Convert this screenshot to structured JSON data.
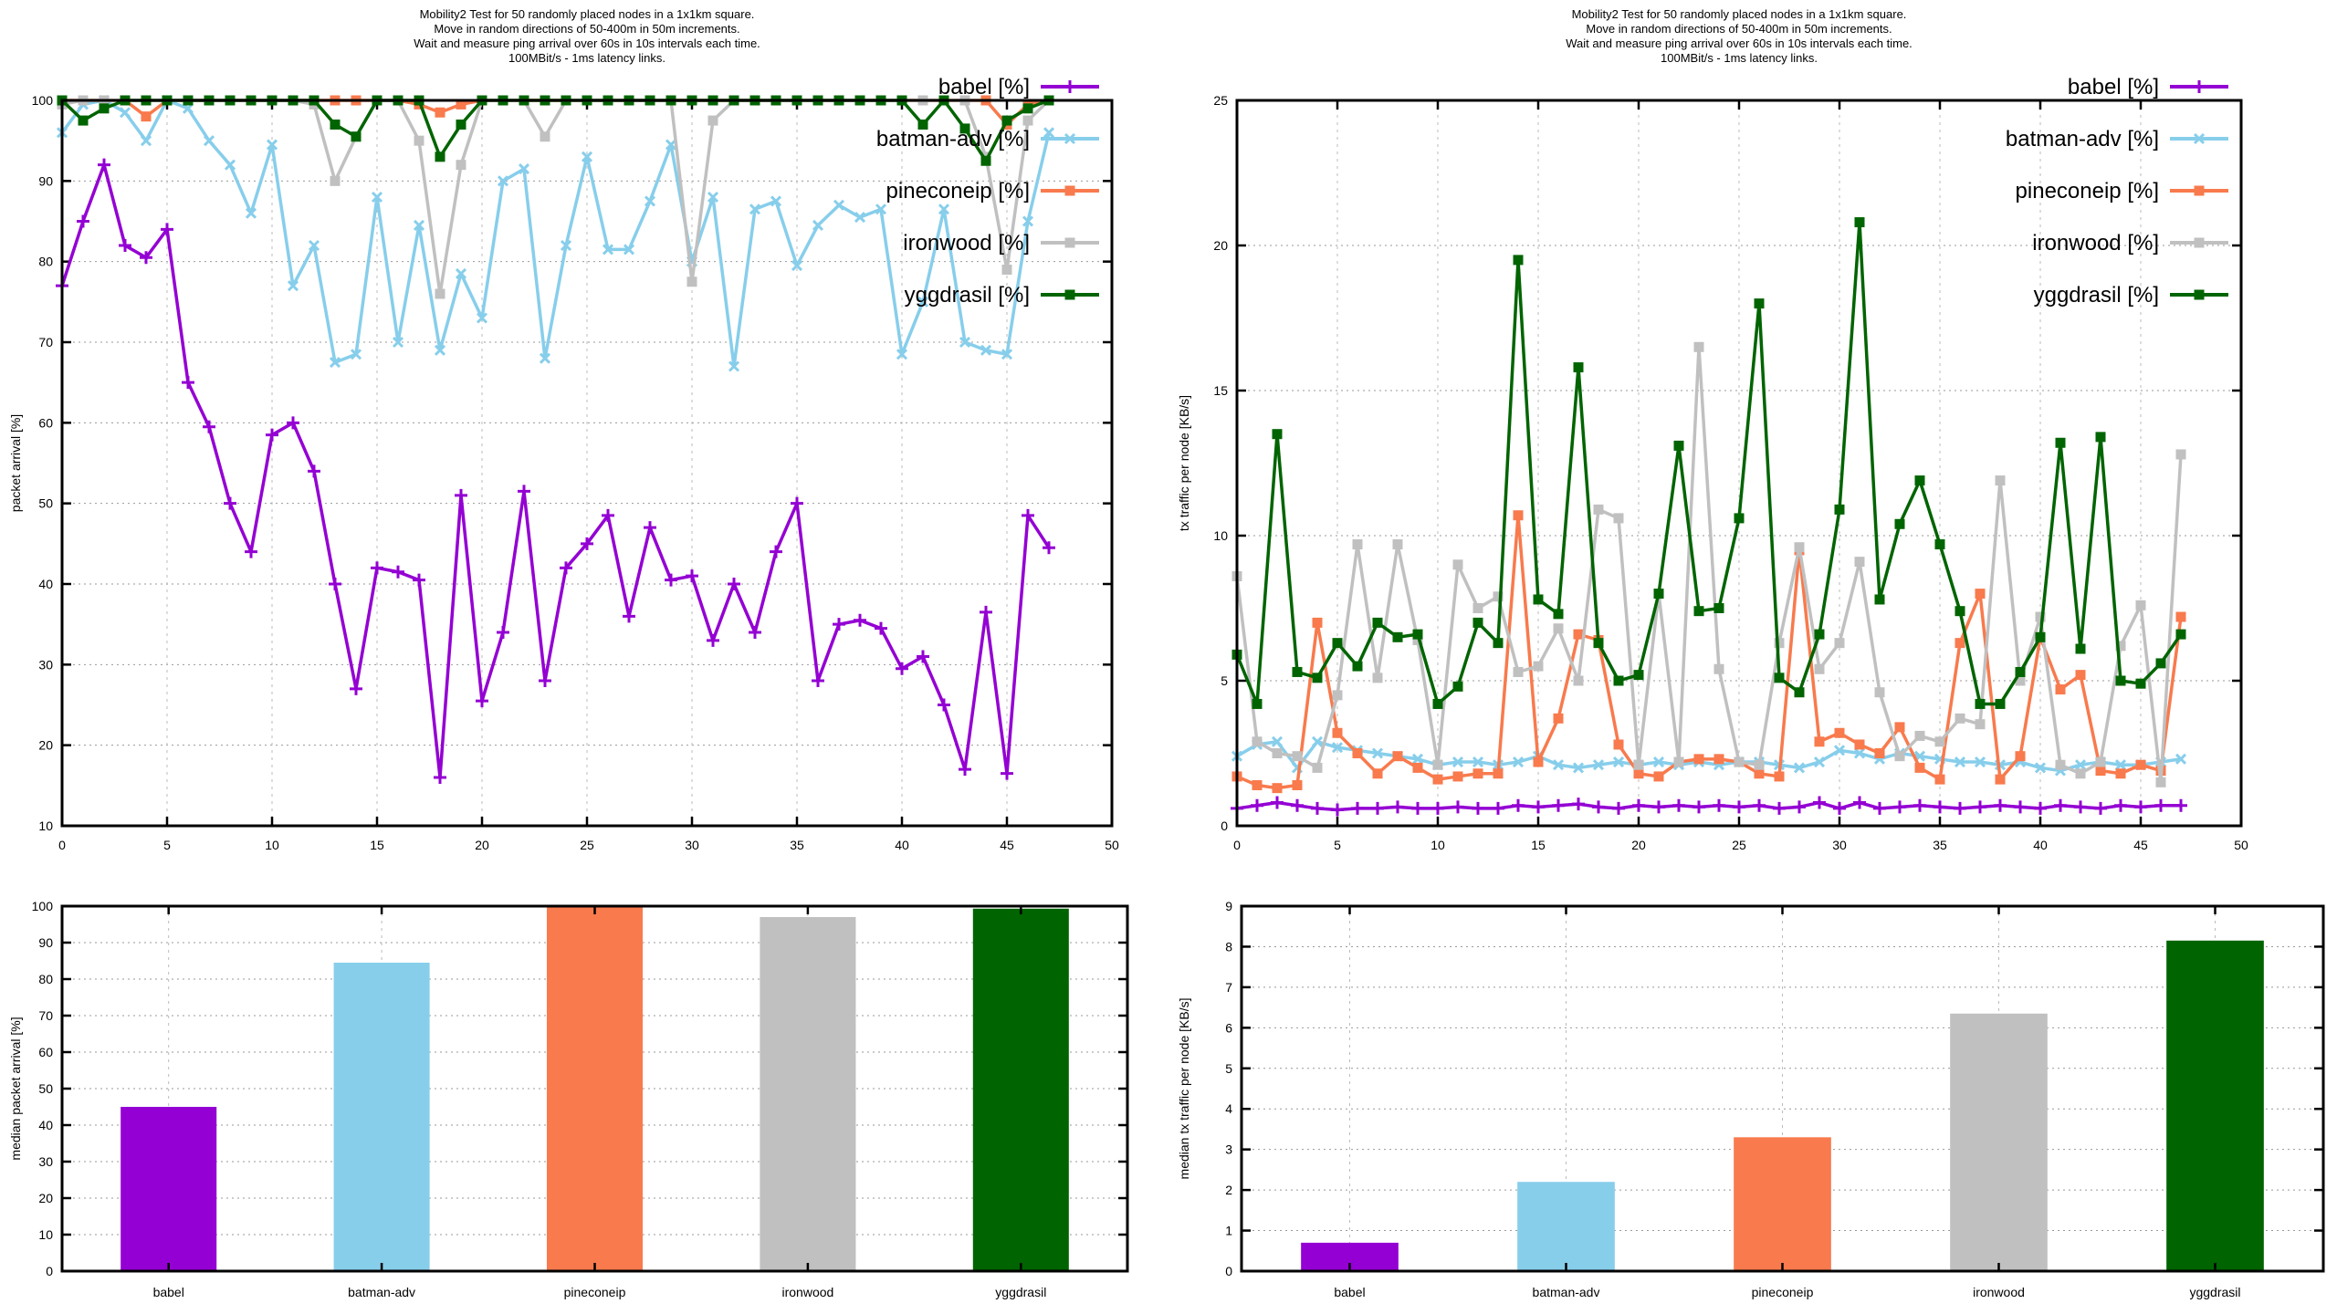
{
  "page": {
    "background": "#ffffff",
    "description_title": "Mobility2 mesh routing protocol comparison plots"
  },
  "palette": {
    "babel": "#9400d3",
    "batman_adv": "#87ceeb",
    "pineconeip": "#f87a4d",
    "ironwood": "#c0c0c0",
    "yggdrasil": "#006400",
    "frame": "#000000",
    "grid_h": "#999999",
    "grid_v": "#bbbbbb"
  },
  "chart_data": [
    {
      "id": "packet-arrival-line",
      "type": "line",
      "title_lines": [
        "Mobility2 Test for 50 randomly placed nodes in a 1x1km square.",
        "Move in random directions of 50-400m in 50m increments.",
        "Wait and measure ping arrival over 60s in 10s intervals each time.",
        "100MBit/s - 1ms latency links."
      ],
      "xlabel": "",
      "ylabel": "packet arrival [%]",
      "xlim": [
        0,
        50
      ],
      "ylim": [
        10,
        100
      ],
      "xtick_step": 5,
      "ytick_step": 10,
      "grid": true,
      "legend_position": "top-right-inside",
      "series": [
        {
          "name": "babel [%]",
          "color": "#9400d3",
          "marker": "plus",
          "values": [
            77,
            85,
            92,
            82,
            80.5,
            84,
            65,
            59.5,
            50,
            44,
            58.5,
            60,
            54,
            40,
            27,
            42,
            41.5,
            40.5,
            16,
            51,
            25.5,
            34,
            51.5,
            28,
            42,
            45,
            48.5,
            36,
            47,
            40.5,
            41,
            33,
            40,
            34,
            44,
            50,
            28,
            35,
            35.5,
            34.5,
            29.5,
            31,
            25,
            17,
            36.5,
            16.5,
            48.5,
            44.5
          ]
        },
        {
          "name": "batman-adv [%]",
          "color": "#87ceeb",
          "marker": "cross",
          "values": [
            96,
            99.5,
            100,
            98.5,
            95,
            100,
            99,
            95,
            92,
            86,
            94.5,
            77,
            82,
            67.5,
            68.5,
            88,
            70,
            84.5,
            69,
            78.5,
            73,
            90,
            91.5,
            68,
            82,
            93,
            81.5,
            81.5,
            87.5,
            94.5,
            80,
            88,
            67,
            86.5,
            87.5,
            79.5,
            84.5,
            87,
            85.5,
            86.5,
            68.5,
            75,
            86.5,
            70,
            69,
            68.5,
            85,
            96
          ]
        },
        {
          "name": "pineconeip [%]",
          "color": "#f87a4d",
          "marker": "square",
          "values": [
            100,
            100,
            100,
            100,
            98,
            100,
            100,
            100,
            100,
            100,
            100,
            100,
            100,
            100,
            100,
            100,
            100,
            99.5,
            98.5,
            99.5,
            100,
            100,
            100,
            100,
            100,
            100,
            100,
            100,
            100,
            100,
            100,
            100,
            100,
            100,
            100,
            100,
            100,
            100,
            100,
            100,
            100,
            100,
            100,
            100,
            100,
            97,
            99.5,
            100
          ]
        },
        {
          "name": "ironwood [%]",
          "color": "#c0c0c0",
          "marker": "square",
          "values": [
            99.5,
            100,
            100,
            100,
            100,
            100,
            100,
            100,
            100,
            100,
            100,
            100,
            99.5,
            90,
            95.5,
            100,
            100,
            95,
            76,
            92,
            100,
            100,
            100,
            95.5,
            100,
            100,
            100,
            100,
            100,
            100,
            77.5,
            97.5,
            100,
            100,
            100,
            100,
            100,
            100,
            100,
            100,
            100,
            100,
            100,
            100,
            93,
            79,
            97.5,
            100
          ]
        },
        {
          "name": "yggdrasil [%]",
          "color": "#006400",
          "marker": "square",
          "values": [
            100,
            97.5,
            99,
            100,
            100,
            100,
            100,
            100,
            100,
            100,
            100,
            100,
            100,
            97,
            95.5,
            100,
            100,
            100,
            93,
            97,
            100,
            100,
            100,
            100,
            100,
            100,
            100,
            100,
            100,
            100,
            100,
            100,
            100,
            100,
            100,
            100,
            100,
            100,
            100,
            100,
            100,
            97,
            100,
            96.5,
            92.5,
            97.5,
            99,
            100
          ]
        }
      ]
    },
    {
      "id": "tx-traffic-line",
      "type": "line",
      "title_lines": [
        "Mobility2 Test for 50 randomly placed nodes in a 1x1km square.",
        "Move in random directions of 50-400m in 50m increments.",
        "Wait and measure ping arrival over 60s in 10s intervals each time.",
        "100MBit/s - 1ms latency links."
      ],
      "xlabel": "",
      "ylabel": "tx traffic per node [KB/s]",
      "xlim": [
        0,
        50
      ],
      "ylim": [
        0,
        25
      ],
      "xtick_step": 5,
      "ytick_step": 5,
      "grid": true,
      "legend_position": "top-right-inside",
      "series": [
        {
          "name": "babel [%]",
          "color": "#9400d3",
          "marker": "plus",
          "values": [
            0.6,
            0.7,
            0.8,
            0.7,
            0.6,
            0.55,
            0.6,
            0.6,
            0.65,
            0.6,
            0.6,
            0.65,
            0.6,
            0.6,
            0.7,
            0.65,
            0.7,
            0.75,
            0.65,
            0.6,
            0.7,
            0.65,
            0.7,
            0.65,
            0.7,
            0.65,
            0.7,
            0.6,
            0.65,
            0.8,
            0.6,
            0.8,
            0.6,
            0.65,
            0.7,
            0.65,
            0.6,
            0.65,
            0.7,
            0.65,
            0.6,
            0.7,
            0.65,
            0.6,
            0.7,
            0.65,
            0.7,
            0.7
          ]
        },
        {
          "name": "batman-adv [%]",
          "color": "#87ceeb",
          "marker": "cross",
          "values": [
            2.4,
            2.8,
            2.9,
            2.0,
            2.9,
            2.7,
            2.6,
            2.5,
            2.4,
            2.3,
            2.1,
            2.2,
            2.2,
            2.1,
            2.2,
            2.4,
            2.1,
            2.0,
            2.1,
            2.2,
            2.1,
            2.2,
            2.1,
            2.2,
            2.1,
            2.2,
            2.2,
            2.1,
            2.0,
            2.2,
            2.6,
            2.5,
            2.3,
            2.5,
            2.4,
            2.3,
            2.2,
            2.2,
            2.1,
            2.2,
            2.0,
            1.9,
            2.1,
            2.2,
            2.1,
            2.1,
            2.2,
            2.3
          ]
        },
        {
          "name": "pineconeip [%]",
          "color": "#f87a4d",
          "marker": "square",
          "values": [
            1.7,
            1.4,
            1.3,
            1.4,
            7.0,
            3.2,
            2.5,
            1.8,
            2.4,
            2.0,
            1.6,
            1.7,
            1.8,
            1.8,
            10.7,
            2.2,
            3.7,
            6.6,
            6.4,
            2.8,
            1.8,
            1.7,
            2.2,
            2.3,
            2.3,
            2.2,
            1.8,
            1.7,
            9.5,
            2.9,
            3.2,
            2.8,
            2.5,
            3.4,
            2.0,
            1.6,
            6.3,
            8.0,
            1.6,
            2.4,
            6.5,
            4.7,
            5.2,
            1.9,
            1.8,
            2.1,
            1.9,
            7.2
          ]
        },
        {
          "name": "ironwood [%]",
          "color": "#c0c0c0",
          "marker": "square",
          "values": [
            8.6,
            2.9,
            2.5,
            2.4,
            2.0,
            4.5,
            9.7,
            5.1,
            9.7,
            6.4,
            2.1,
            9.0,
            7.5,
            7.9,
            5.3,
            5.5,
            6.8,
            5.0,
            10.9,
            10.6,
            2.1,
            8.0,
            2.2,
            16.5,
            5.4,
            2.2,
            2.1,
            6.3,
            9.6,
            5.4,
            6.3,
            9.1,
            4.6,
            2.4,
            3.1,
            2.9,
            3.7,
            3.5,
            11.9,
            5.0,
            7.2,
            2.1,
            1.8,
            2.2,
            6.2,
            7.6,
            1.5,
            12.8
          ]
        },
        {
          "name": "yggdrasil [%]",
          "color": "#006400",
          "marker": "square",
          "values": [
            5.9,
            4.2,
            13.5,
            5.3,
            5.1,
            6.3,
            5.5,
            7.0,
            6.5,
            6.6,
            4.2,
            4.8,
            7.0,
            6.3,
            19.5,
            7.8,
            7.3,
            15.8,
            6.3,
            5.0,
            5.2,
            8.0,
            13.1,
            7.4,
            7.5,
            10.6,
            18.0,
            5.1,
            4.6,
            6.6,
            10.9,
            20.8,
            7.8,
            10.4,
            11.9,
            9.7,
            7.4,
            4.2,
            4.2,
            5.3,
            6.5,
            13.2,
            6.1,
            13.4,
            5.0,
            4.9,
            5.6,
            6.6
          ]
        }
      ]
    },
    {
      "id": "median-packet-arrival-bar",
      "type": "bar",
      "title_lines": [],
      "xlabel": "",
      "ylabel": "median packet arrival [%]",
      "ylim": [
        0,
        100
      ],
      "ytick_step": 10,
      "grid": true,
      "categories": [
        "babel",
        "batman-adv",
        "pineconeip",
        "ironwood",
        "yggdrasil"
      ],
      "values": [
        45,
        84.5,
        100,
        97,
        99.3
      ],
      "colors": [
        "#9400d3",
        "#87ceeb",
        "#f87a4d",
        "#c0c0c0",
        "#006400"
      ]
    },
    {
      "id": "median-tx-traffic-bar",
      "type": "bar",
      "title_lines": [],
      "xlabel": "",
      "ylabel": "median tx traffic per node [KB/s]",
      "ylim": [
        0,
        9
      ],
      "ytick_step": 1,
      "grid": true,
      "categories": [
        "babel",
        "batman-adv",
        "pineconeip",
        "ironwood",
        "yggdrasil"
      ],
      "values": [
        0.7,
        2.2,
        3.3,
        6.35,
        8.15
      ],
      "colors": [
        "#9400d3",
        "#87ceeb",
        "#f87a4d",
        "#c0c0c0",
        "#006400"
      ]
    }
  ]
}
